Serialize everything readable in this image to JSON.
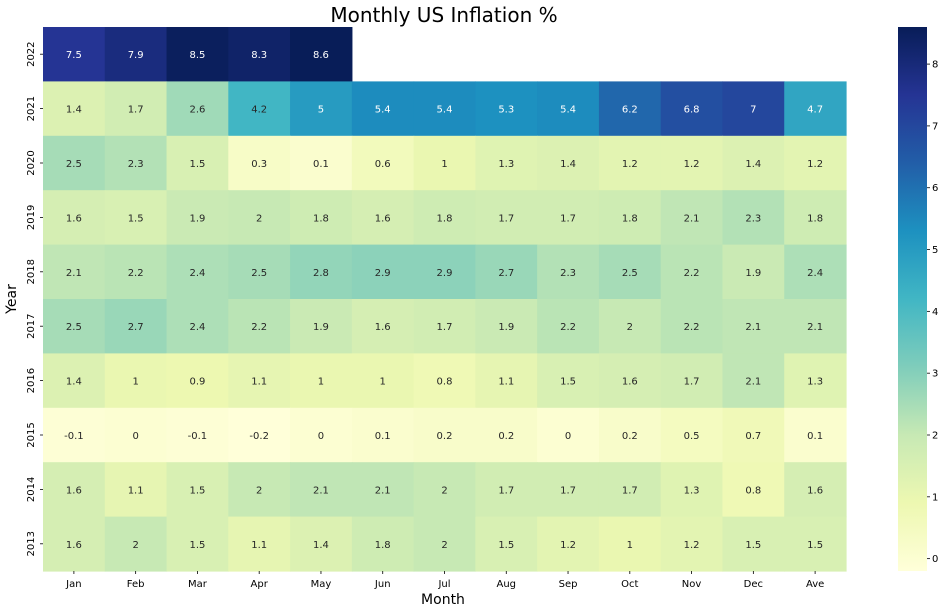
{
  "chart_data": {
    "type": "heatmap",
    "title": "Monthly US Inflation %",
    "xlabel": "Month",
    "ylabel": "Year",
    "x_categories": [
      "Jan",
      "Feb",
      "Mar",
      "Apr",
      "May",
      "Jun",
      "Jul",
      "Aug",
      "Sep",
      "Oct",
      "Nov",
      "Dec",
      "Ave"
    ],
    "y_categories": [
      "2022",
      "2021",
      "2020",
      "2019",
      "2018",
      "2017",
      "2016",
      "2015",
      "2014",
      "2013"
    ],
    "values": [
      [
        7.5,
        7.9,
        8.5,
        8.3,
        8.6,
        null,
        null,
        null,
        null,
        null,
        null,
        null,
        null
      ],
      [
        1.4,
        1.7,
        2.6,
        4.2,
        5,
        5.4,
        5.4,
        5.3,
        5.4,
        6.2,
        6.8,
        7,
        4.7
      ],
      [
        2.5,
        2.3,
        1.5,
        0.3,
        0.1,
        0.6,
        1,
        1.3,
        1.4,
        1.2,
        1.2,
        1.4,
        1.2
      ],
      [
        1.6,
        1.5,
        1.9,
        2,
        1.8,
        1.6,
        1.8,
        1.7,
        1.7,
        1.8,
        2.1,
        2.3,
        1.8
      ],
      [
        2.1,
        2.2,
        2.4,
        2.5,
        2.8,
        2.9,
        2.9,
        2.7,
        2.3,
        2.5,
        2.2,
        1.9,
        2.4
      ],
      [
        2.5,
        2.7,
        2.4,
        2.2,
        1.9,
        1.6,
        1.7,
        1.9,
        2.2,
        2,
        2.2,
        2.1,
        2.1
      ],
      [
        1.4,
        1,
        0.9,
        1.1,
        1,
        1,
        0.8,
        1.1,
        1.5,
        1.6,
        1.7,
        2.1,
        1.3
      ],
      [
        -0.1,
        0,
        -0.1,
        -0.2,
        0,
        0.1,
        0.2,
        0.2,
        0,
        0.2,
        0.5,
        0.7,
        0.1
      ],
      [
        1.6,
        1.1,
        1.5,
        2,
        2.1,
        2.1,
        2,
        1.7,
        1.7,
        1.7,
        1.3,
        0.8,
        1.6
      ],
      [
        1.6,
        2,
        1.5,
        1.1,
        1.4,
        1.8,
        2,
        1.5,
        1.2,
        1,
        1.2,
        1.5,
        1.5
      ]
    ],
    "colormap": "YlGnBu",
    "colorbar": {
      "min": -0.2,
      "max": 8.6,
      "ticks": [
        "0",
        "1",
        "2",
        "3",
        "4",
        "5",
        "6",
        "7",
        "8"
      ]
    },
    "annotations": true
  }
}
